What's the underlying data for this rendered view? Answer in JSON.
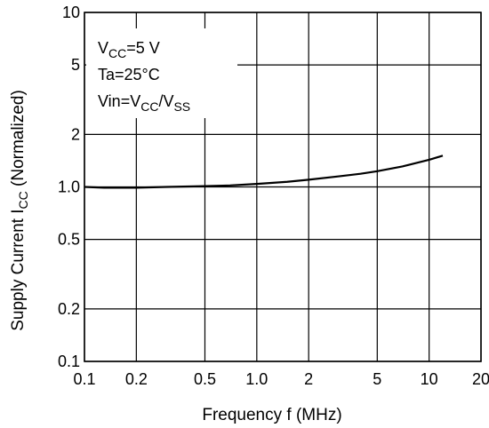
{
  "chart_data": {
    "type": "line",
    "title": "",
    "xlabel": "Frequency  f  (MHz)",
    "ylabel": {
      "text": "Supply Current  I",
      "sub": "CC",
      "suffix": "  (Normalized)"
    },
    "x_scale": "log",
    "y_scale": "log",
    "xlim": [
      0.1,
      20
    ],
    "ylim": [
      0.1,
      10
    ],
    "grid": true,
    "x_ticks": [
      {
        "value": 0.1,
        "label": "0.1"
      },
      {
        "value": 0.2,
        "label": "0.2"
      },
      {
        "value": 0.5,
        "label": "0.5"
      },
      {
        "value": 1.0,
        "label": "1.0"
      },
      {
        "value": 2,
        "label": "2"
      },
      {
        "value": 5,
        "label": "5"
      },
      {
        "value": 10,
        "label": "10"
      },
      {
        "value": 20,
        "label": "20"
      }
    ],
    "y_ticks": [
      {
        "value": 0.1,
        "label": "0.1"
      },
      {
        "value": 0.2,
        "label": "0.2"
      },
      {
        "value": 0.5,
        "label": "0.5"
      },
      {
        "value": 1.0,
        "label": "1.0"
      },
      {
        "value": 2,
        "label": "2"
      },
      {
        "value": 5,
        "label": "5"
      },
      {
        "value": 10,
        "label": "10"
      }
    ],
    "series": [
      {
        "color": "#000000",
        "x": [
          0.1,
          0.13,
          0.2,
          0.3,
          0.5,
          0.7,
          1.0,
          1.5,
          2,
          3,
          4,
          5,
          7,
          10,
          12
        ],
        "y": [
          1.0,
          0.99,
          0.99,
          1.0,
          1.01,
          1.02,
          1.04,
          1.07,
          1.1,
          1.15,
          1.19,
          1.23,
          1.31,
          1.43,
          1.51
        ]
      }
    ],
    "annotation": {
      "lines": [
        [
          {
            "t": "V"
          },
          {
            "t": "CC",
            "sub": true
          },
          {
            "t": "=5 V"
          }
        ],
        [
          {
            "t": "Ta=25°C"
          }
        ],
        [
          {
            "t": "Vin=V"
          },
          {
            "t": "CC",
            "sub": true
          },
          {
            "t": "/V"
          },
          {
            "t": "SS",
            "sub": true
          }
        ]
      ]
    }
  }
}
